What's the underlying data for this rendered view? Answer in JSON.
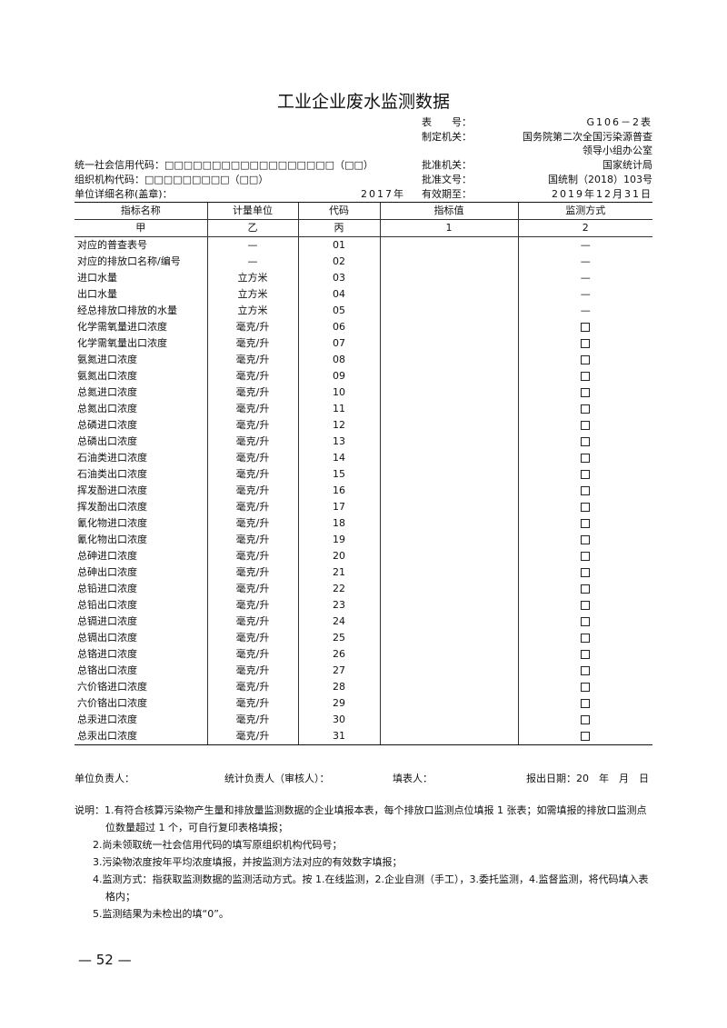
{
  "title": "工业企业废水监测数据",
  "meta": {
    "form_no_label": "表　　号：",
    "form_no": "G106－2表",
    "issuer_label": "制定机关：",
    "issuer_line1": "国务院第二次全国污染源普查",
    "issuer_line2": "领导小组办公室",
    "credit_code_label": "统一社会信用代码：□□□□□□□□□□□□□□□□□□（□□）",
    "approver_label": "批准机关：",
    "approver": "国家统计局",
    "org_code_label": "组织机构代码：□□□□□□□□□（□□）",
    "doc_no_label": "批准文号：",
    "doc_no": "国统制（2018）103号",
    "unit_name_label": "单位详细名称(盖章)：",
    "year": "2017年",
    "valid_label": "有效期至：",
    "valid_until": "2019年12月31日"
  },
  "table": {
    "headers": [
      "指标名称",
      "计量单位",
      "代码",
      "指标值",
      "监测方式"
    ],
    "subheaders": [
      "甲",
      "乙",
      "丙",
      "1",
      "2"
    ],
    "rows": [
      [
        "对应的普查表号",
        "—",
        "01",
        "",
        "—"
      ],
      [
        "对应的排放口名称/编号",
        "—",
        "02",
        "",
        "—"
      ],
      [
        "进口水量",
        "立方米",
        "03",
        "",
        "—"
      ],
      [
        "出口水量",
        "立方米",
        "04",
        "",
        "—"
      ],
      [
        "经总排放口排放的水量",
        "立方米",
        "05",
        "",
        "—"
      ],
      [
        "化学需氧量进口浓度",
        "毫克/升",
        "06",
        "",
        "box"
      ],
      [
        "化学需氧量出口浓度",
        "毫克/升",
        "07",
        "",
        "box"
      ],
      [
        "氨氮进口浓度",
        "毫克/升",
        "08",
        "",
        "box"
      ],
      [
        "氨氮出口浓度",
        "毫克/升",
        "09",
        "",
        "box"
      ],
      [
        "总氮进口浓度",
        "毫克/升",
        "10",
        "",
        "box"
      ],
      [
        "总氮出口浓度",
        "毫克/升",
        "11",
        "",
        "box"
      ],
      [
        "总磷进口浓度",
        "毫克/升",
        "12",
        "",
        "box"
      ],
      [
        "总磷出口浓度",
        "毫克/升",
        "13",
        "",
        "box"
      ],
      [
        "石油类进口浓度",
        "毫克/升",
        "14",
        "",
        "box"
      ],
      [
        "石油类出口浓度",
        "毫克/升",
        "15",
        "",
        "box"
      ],
      [
        "挥发酚进口浓度",
        "毫克/升",
        "16",
        "",
        "box"
      ],
      [
        "挥发酚出口浓度",
        "毫克/升",
        "17",
        "",
        "box"
      ],
      [
        "氰化物进口浓度",
        "毫克/升",
        "18",
        "",
        "box"
      ],
      [
        "氰化物出口浓度",
        "毫克/升",
        "19",
        "",
        "box"
      ],
      [
        "总砷进口浓度",
        "毫克/升",
        "20",
        "",
        "box"
      ],
      [
        "总砷出口浓度",
        "毫克/升",
        "21",
        "",
        "box"
      ],
      [
        "总铅进口浓度",
        "毫克/升",
        "22",
        "",
        "box"
      ],
      [
        "总铅出口浓度",
        "毫克/升",
        "23",
        "",
        "box"
      ],
      [
        "总镉进口浓度",
        "毫克/升",
        "24",
        "",
        "box"
      ],
      [
        "总镉出口浓度",
        "毫克/升",
        "25",
        "",
        "box"
      ],
      [
        "总铬进口浓度",
        "毫克/升",
        "26",
        "",
        "box"
      ],
      [
        "总铬出口浓度",
        "毫克/升",
        "27",
        "",
        "box"
      ],
      [
        "六价铬进口浓度",
        "毫克/升",
        "28",
        "",
        "box"
      ],
      [
        "六价铬出口浓度",
        "毫克/升",
        "29",
        "",
        "box"
      ],
      [
        "总汞进口浓度",
        "毫克/升",
        "30",
        "",
        "box"
      ],
      [
        "总汞出口浓度",
        "毫克/升",
        "31",
        "",
        "box"
      ]
    ]
  },
  "footer": {
    "unit_head": "单位负责人：",
    "stat_head": "统计负责人（审核人）：",
    "filler": "填表人：",
    "report_date": "报出日期：20　年　月　日"
  },
  "notes": [
    "说明：1.有符合核算污染物产生量和排放量监测数据的企业填报本表，每个排放口监测点位填报 1 张表；如需填报的排放口监测点位数量超过 1 个，可自行复印表格填报；",
    "2.尚未领取统一社会信用代码的填写原组织机构代码号；",
    "3.污染物浓度按年平均浓度填报，并按监测方法对应的有效数字填报；",
    "4.监测方式：指获取监测数据的监测活动方式。按 1.在线监测，2.企业自测（手工），3.委托监测，4.监督监测，将代码填入表格内；",
    "5.监测结果为未检出的填“0”。"
  ],
  "page_number": "— 52 —"
}
